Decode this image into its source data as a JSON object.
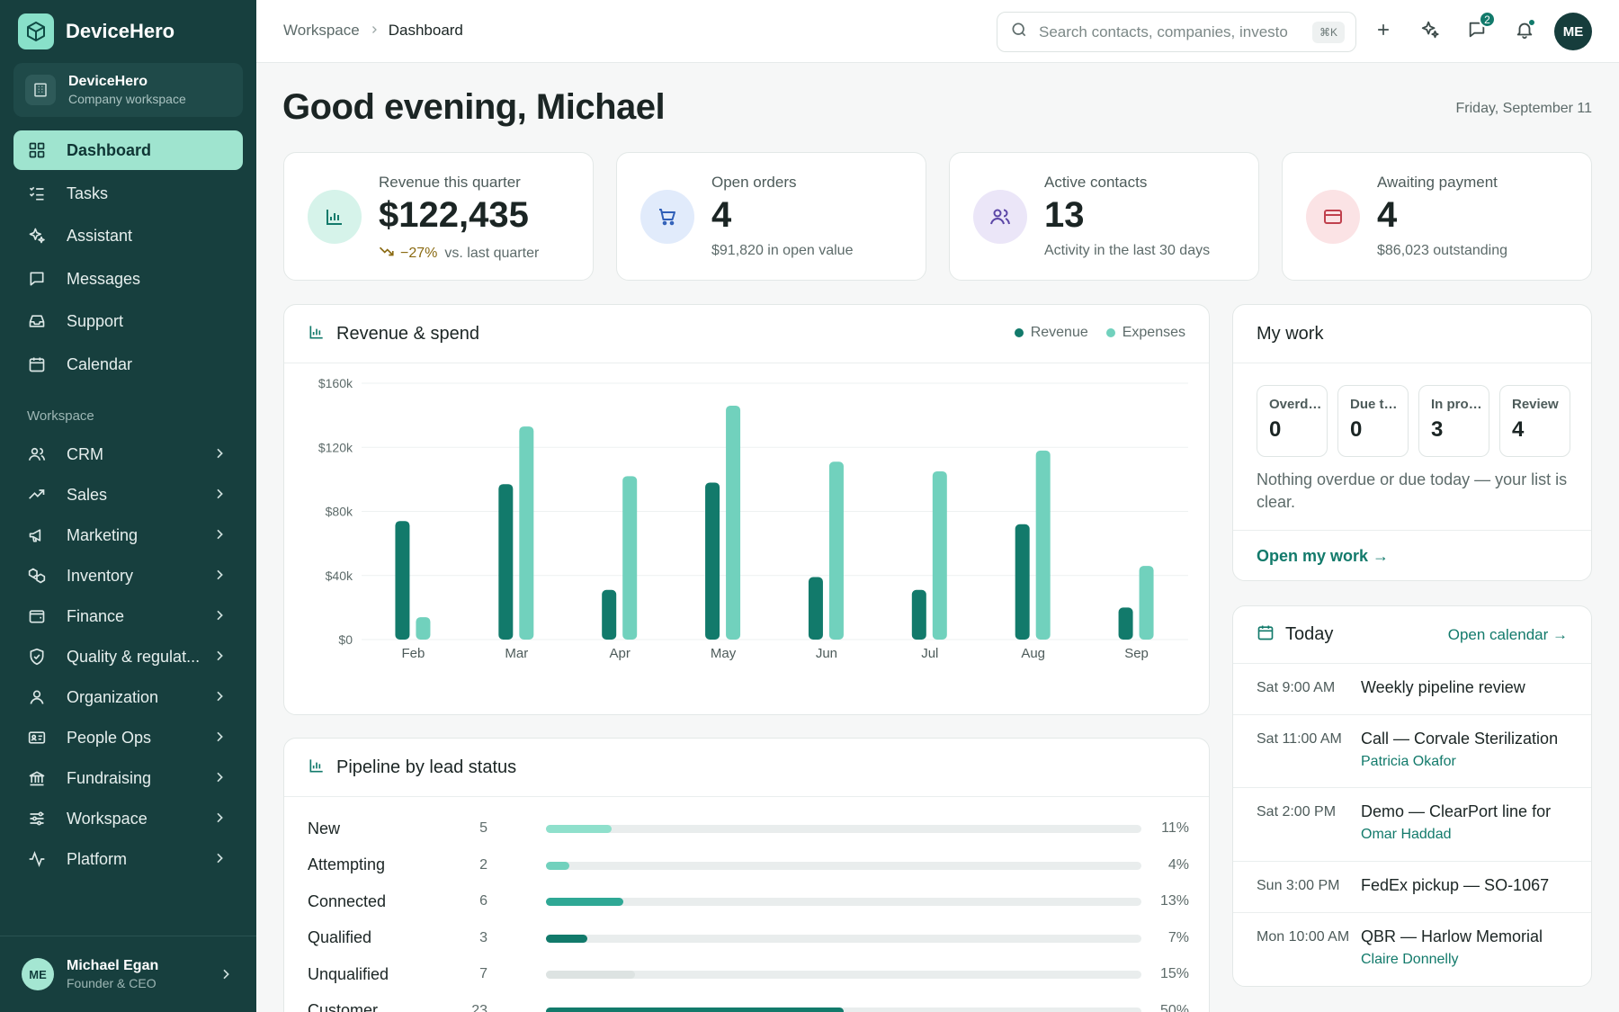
{
  "app": {
    "name": "DeviceHero"
  },
  "workspace": {
    "name": "DeviceHero",
    "subtitle": "Company workspace"
  },
  "nav": {
    "primary": [
      {
        "label": "Dashboard",
        "icon": "grid-icon",
        "active": true
      },
      {
        "label": "Tasks",
        "icon": "checklist-icon"
      },
      {
        "label": "Assistant",
        "icon": "sparkles-icon"
      },
      {
        "label": "Messages",
        "icon": "message-icon"
      },
      {
        "label": "Support",
        "icon": "inbox-icon"
      },
      {
        "label": "Calendar",
        "icon": "calendar-icon"
      }
    ],
    "section_label": "Workspace",
    "groups": [
      {
        "label": "CRM",
        "icon": "users-icon"
      },
      {
        "label": "Sales",
        "icon": "trending-up-icon"
      },
      {
        "label": "Marketing",
        "icon": "megaphone-icon"
      },
      {
        "label": "Inventory",
        "icon": "boxes-icon"
      },
      {
        "label": "Finance",
        "icon": "wallet-icon"
      },
      {
        "label": "Quality & regulat...",
        "icon": "shield-check-icon"
      },
      {
        "label": "Organization",
        "icon": "user-icon"
      },
      {
        "label": "People Ops",
        "icon": "id-card-icon"
      },
      {
        "label": "Fundraising",
        "icon": "bank-icon"
      },
      {
        "label": "Workspace",
        "icon": "sliders-icon"
      },
      {
        "label": "Platform",
        "icon": "activity-icon"
      }
    ]
  },
  "profile": {
    "initials": "ME",
    "name": "Michael Egan",
    "role": "Founder & CEO"
  },
  "topbar": {
    "breadcrumb": [
      "Workspace",
      "Dashboard"
    ],
    "search_placeholder": "Search contacts, companies, investo",
    "search_shortcut": "⌘K",
    "messages_badge": "2",
    "avatar_initials": "ME"
  },
  "page": {
    "greeting": "Good evening, Michael",
    "date": "Friday, September 11"
  },
  "stats": [
    {
      "label": "Revenue this quarter",
      "value": "$122,435",
      "delta": "−27%",
      "sub": "vs. last quarter",
      "icon": "bar-chart-icon",
      "icon_bg": "#d6f3ea",
      "icon_color": "#127a6b"
    },
    {
      "label": "Open orders",
      "value": "4",
      "sub": "$91,820 in open value",
      "icon": "cart-icon",
      "icon_bg": "#e1ebfb",
      "icon_color": "#2f5fb8"
    },
    {
      "label": "Active contacts",
      "value": "13",
      "sub": "Activity in the last 30 days",
      "icon": "users-icon",
      "icon_bg": "#ebe6f8",
      "icon_color": "#5b46a6"
    },
    {
      "label": "Awaiting payment",
      "value": "4",
      "sub": "$86,023 outstanding",
      "icon": "credit-card-icon",
      "icon_bg": "#fbe3e5",
      "icon_color": "#c0404d"
    }
  ],
  "revenue_card": {
    "title": "Revenue & spend"
  },
  "chart_data": {
    "type": "bar",
    "title": "Revenue & spend",
    "categories": [
      "Feb",
      "Mar",
      "Apr",
      "May",
      "Jun",
      "Jul",
      "Aug",
      "Sep"
    ],
    "series": [
      {
        "name": "Revenue",
        "color": "#127a6b",
        "values": [
          74000,
          97000,
          31000,
          98000,
          39000,
          31000,
          72000,
          20000
        ]
      },
      {
        "name": "Expenses",
        "color": "#71d1bd",
        "values": [
          14000,
          133000,
          102000,
          146000,
          111000,
          105000,
          118000,
          46000
        ]
      }
    ],
    "yticks": [
      "$0",
      "$40k",
      "$80k",
      "$120k",
      "$160k"
    ],
    "ylim": [
      0,
      160000
    ],
    "grid": true,
    "legend": "top-right"
  },
  "pipeline": {
    "title": "Pipeline by lead status",
    "rows": [
      {
        "label": "New",
        "count": "5",
        "pct": "11%",
        "fraction": 0.11,
        "color": "#8fe0cc"
      },
      {
        "label": "Attempting",
        "count": "2",
        "pct": "4%",
        "fraction": 0.04,
        "color": "#71d1bd"
      },
      {
        "label": "Connected",
        "count": "6",
        "pct": "13%",
        "fraction": 0.13,
        "color": "#2fa895"
      },
      {
        "label": "Qualified",
        "count": "3",
        "pct": "7%",
        "fraction": 0.07,
        "color": "#127a6b"
      },
      {
        "label": "Unqualified",
        "count": "7",
        "pct": "15%",
        "fraction": 0.15,
        "color": "#dde3e2"
      },
      {
        "label": "Customer",
        "count": "23",
        "pct": "50%",
        "fraction": 0.5,
        "color": "#127a6b"
      }
    ]
  },
  "my_work": {
    "title": "My work",
    "tiles": [
      {
        "label": "Overdue",
        "value": "0"
      },
      {
        "label": "Due today",
        "value": "0"
      },
      {
        "label": "In progress",
        "value": "3"
      },
      {
        "label": "Review",
        "value": "4"
      }
    ],
    "empty_text": "Nothing overdue or due today — your list is clear.",
    "link": "Open my work →"
  },
  "today": {
    "title": "Today",
    "link": "Open calendar →",
    "events": [
      {
        "time": "Sat 9:00 AM",
        "title": "Weekly pipeline review",
        "who": ""
      },
      {
        "time": "Sat 11:00 AM",
        "title": "Call — Corvale Sterilization",
        "who": "Patricia Okafor"
      },
      {
        "time": "Sat 2:00 PM",
        "title": "Demo — ClearPort line for",
        "who": "Omar Haddad"
      },
      {
        "time": "Sun 3:00 PM",
        "title": "FedEx pickup — SO-1067",
        "who": ""
      },
      {
        "time": "Mon 10:00 AM",
        "title": "QBR — Harlow Memorial",
        "who": "Claire Donnelly"
      }
    ]
  }
}
